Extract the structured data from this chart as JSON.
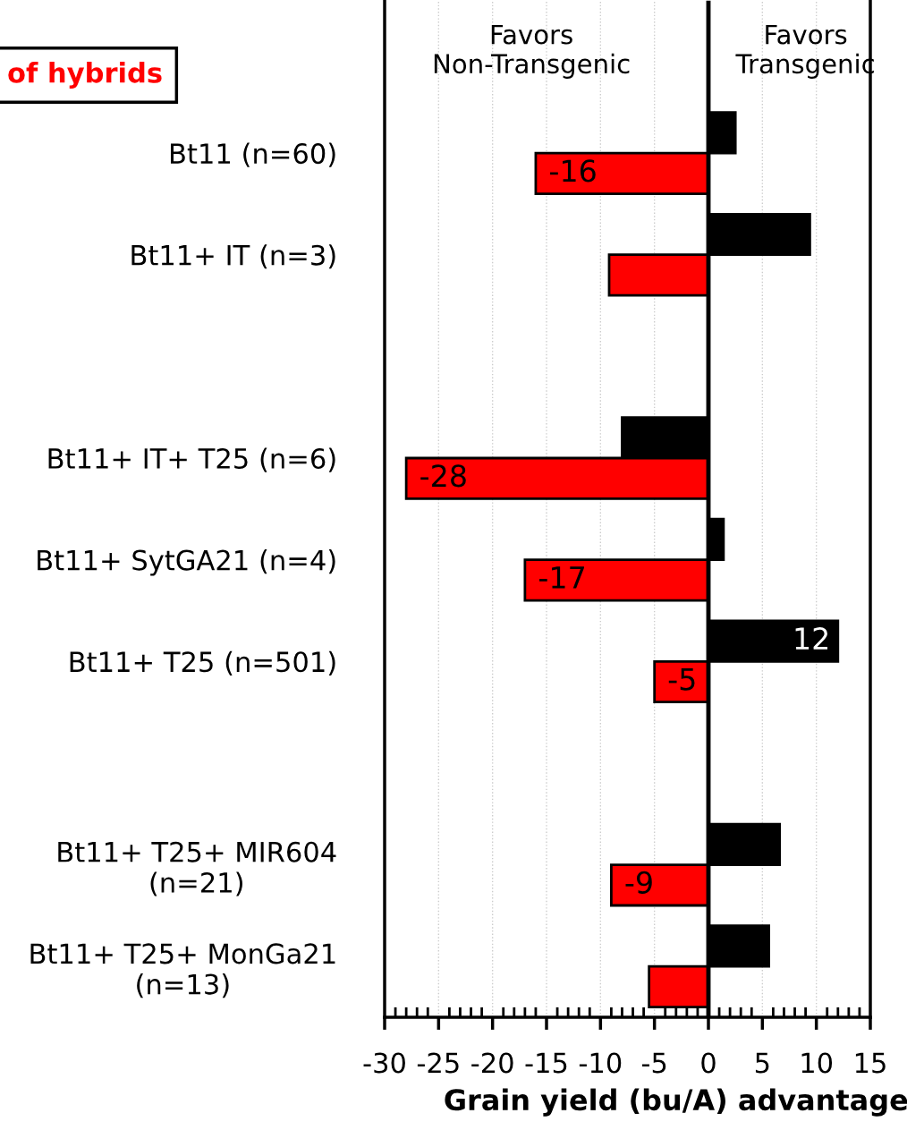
{
  "chart_data": {
    "type": "bar",
    "orientation": "horizontal",
    "categories": [
      null,
      "Bt11 (n=60)",
      "Bt11+ IT (n=3)",
      null,
      "Bt11+ IT+ T25 (n=6)",
      "Bt11+ SytGA21 (n=4)",
      "Bt11+ T25 (n=501)",
      null,
      "Bt11+ T25+ MIR604\n(n=21)",
      "Bt11+ T25+ MonGa21\n(n=13)"
    ],
    "series": [
      {
        "color": "#000000",
        "values": [
          null,
          2.5,
          9.4,
          null,
          -8.0,
          1.4,
          12,
          null,
          6.6,
          5.6
        ],
        "value_labels": [
          null,
          null,
          null,
          null,
          null,
          null,
          "12",
          null,
          null,
          null
        ]
      },
      {
        "color": "#ff0000",
        "values": [
          null,
          -16,
          -9.2,
          null,
          -28,
          -17,
          -5,
          null,
          -9,
          -5.5
        ],
        "value_labels": [
          null,
          "-16",
          null,
          null,
          "-28",
          "-17",
          "-5",
          null,
          "-9",
          null
        ]
      }
    ],
    "xlabel": "Grain yield (bu/A) advantage",
    "xlim": [
      -30,
      15
    ],
    "xticks": [
      {
        "value": -30,
        "label": "-30"
      },
      {
        "value": -25,
        "label": "-25"
      },
      {
        "value": -20,
        "label": "-20"
      },
      {
        "value": -15,
        "label": "-15"
      },
      {
        "value": -10,
        "label": "-10"
      },
      {
        "value": -5,
        "label": "-5"
      },
      0,
      5,
      10,
      15
    ],
    "grid": "x",
    "ref_lines": [
      {
        "axis": "x",
        "value": 0,
        "color": "#000000"
      }
    ],
    "annotations": [
      "Favors\nNon-Transgenic",
      "Favors\nTransgenic",
      "of hybrids"
    ]
  }
}
